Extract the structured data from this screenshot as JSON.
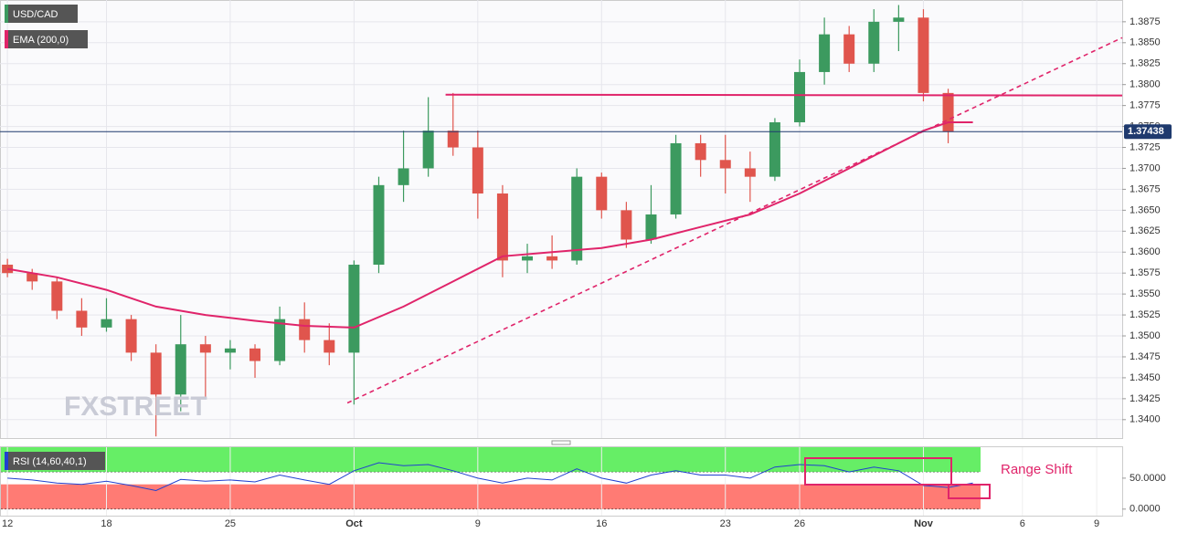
{
  "chart_data": {
    "type": "candlestick",
    "title": "USD/CAD",
    "watermark": "FXSTREET",
    "open": [
      1.3585,
      1.3575,
      1.3565,
      1.353,
      1.351,
      1.352,
      1.348,
      1.343,
      1.349,
      1.348,
      1.3485,
      1.347,
      1.352,
      1.3495,
      1.348,
      1.3585,
      1.368,
      1.37,
      1.3745,
      1.3725,
      1.367,
      1.359,
      1.3595,
      1.359,
      1.369,
      1.365,
      1.3615,
      1.3645,
      1.373,
      1.371,
      1.37,
      1.369,
      1.3755,
      1.3815,
      1.386,
      1.3825,
      1.3875,
      1.388,
      1.379
    ],
    "high": [
      1.3592,
      1.358,
      1.357,
      1.3545,
      1.3545,
      1.3525,
      1.349,
      1.3525,
      1.35,
      1.3495,
      1.349,
      1.3535,
      1.354,
      1.3515,
      1.359,
      1.369,
      1.3745,
      1.3785,
      1.379,
      1.3745,
      1.368,
      1.361,
      1.362,
      1.37,
      1.3695,
      1.366,
      1.368,
      1.374,
      1.374,
      1.374,
      1.372,
      1.376,
      1.383,
      1.388,
      1.387,
      1.389,
      1.3895,
      1.389,
      1.3795
    ],
    "low": [
      1.357,
      1.3555,
      1.352,
      1.35,
      1.3505,
      1.347,
      1.338,
      1.341,
      1.3425,
      1.346,
      1.345,
      1.3465,
      1.348,
      1.3465,
      1.3418,
      1.3575,
      1.366,
      1.369,
      1.3715,
      1.364,
      1.357,
      1.3575,
      1.358,
      1.3585,
      1.364,
      1.3605,
      1.361,
      1.364,
      1.369,
      1.367,
      1.366,
      1.3685,
      1.375,
      1.38,
      1.3815,
      1.3815,
      1.384,
      1.378,
      1.373
    ],
    "close": [
      1.3575,
      1.3565,
      1.353,
      1.351,
      1.352,
      1.348,
      1.343,
      1.349,
      1.348,
      1.3485,
      1.347,
      1.352,
      1.3495,
      1.348,
      1.3585,
      1.368,
      1.37,
      1.3745,
      1.3725,
      1.367,
      1.359,
      1.3595,
      1.359,
      1.369,
      1.365,
      1.3615,
      1.3645,
      1.373,
      1.371,
      1.37,
      1.369,
      1.3755,
      1.3815,
      1.386,
      1.3825,
      1.3875,
      1.388,
      1.379,
      1.37438
    ],
    "up_color": "#3c9a5f",
    "down_color": "#e0554d",
    "ema": {
      "name": "EMA (200,0)",
      "color": "#e0246a",
      "x": [
        0,
        2,
        4,
        6,
        8,
        10,
        12,
        14,
        16,
        18,
        20,
        22,
        24,
        26,
        28,
        30,
        32,
        34,
        36,
        37,
        38,
        39
      ],
      "values": [
        1.358,
        1.357,
        1.3555,
        1.3535,
        1.3525,
        1.3518,
        1.3512,
        1.351,
        1.3535,
        1.3565,
        1.3595,
        1.36,
        1.3605,
        1.3615,
        1.363,
        1.3645,
        1.367,
        1.37,
        1.373,
        1.3745,
        1.3755,
        1.3755
      ]
    },
    "resistance": {
      "x": [
        17.7,
        45.03
      ],
      "values": [
        1.3788,
        1.3787
      ],
      "color": "#e0246a"
    },
    "trendline": {
      "x": [
        13.73,
        45.03
      ],
      "values": [
        1.342,
        1.3856
      ],
      "color": "#e0246a"
    },
    "last_price": {
      "value": 1.37438,
      "label": "1.37438"
    },
    "xlim": [
      -0.3,
      45.03
    ],
    "xticks": [
      {
        "value": 0,
        "label": "12"
      },
      {
        "value": 4,
        "label": "18"
      },
      {
        "value": 9,
        "label": "25"
      },
      {
        "value": 14,
        "label": "Oct"
      },
      {
        "value": 19,
        "label": "9"
      },
      {
        "value": 24,
        "label": "16"
      },
      {
        "value": 29,
        "label": "23"
      },
      {
        "value": 32,
        "label": "26"
      },
      {
        "value": 37,
        "label": "Nov"
      },
      {
        "value": 41,
        "label": "6"
      },
      {
        "value": 44,
        "label": "9"
      }
    ],
    "ylim": [
      1.3378,
      1.3901
    ],
    "yticks": [
      {
        "value": 1.34,
        "label": "1.3400"
      },
      {
        "value": 1.3425,
        "label": "1.3425"
      },
      {
        "value": 1.345,
        "label": "1.3450"
      },
      {
        "value": 1.3475,
        "label": "1.3475"
      },
      {
        "value": 1.35,
        "label": "1.3500"
      },
      {
        "value": 1.3525,
        "label": "1.3525"
      },
      {
        "value": 1.355,
        "label": "1.3550"
      },
      {
        "value": 1.3575,
        "label": "1.3575"
      },
      {
        "value": 1.36,
        "label": "1.3600"
      },
      {
        "value": 1.3625,
        "label": "1.3625"
      },
      {
        "value": 1.365,
        "label": "1.3650"
      },
      {
        "value": 1.3675,
        "label": "1.3675"
      },
      {
        "value": 1.37,
        "label": "1.3700"
      },
      {
        "value": 1.3725,
        "label": "1.3725"
      },
      {
        "value": 1.375,
        "label": "1.3750"
      },
      {
        "value": 1.3775,
        "label": "1.3775"
      },
      {
        "value": 1.38,
        "label": "1.3800"
      },
      {
        "value": 1.3825,
        "label": "1.3825"
      },
      {
        "value": 1.385,
        "label": "1.3850"
      },
      {
        "value": 1.3875,
        "label": "1.3875"
      }
    ],
    "grid": true,
    "rsi": {
      "name": "RSI (14,60,40,1)",
      "color": "#2040d0",
      "values": [
        50,
        47,
        42,
        40,
        45,
        38,
        30,
        48,
        45,
        47,
        44,
        55,
        47,
        40,
        62,
        75,
        70,
        72,
        62,
        50,
        42,
        50,
        47,
        65,
        50,
        42,
        55,
        62,
        55,
        55,
        50,
        68,
        72,
        70,
        60,
        68,
        62,
        38,
        35,
        42
      ],
      "ylim": [
        -10.6,
        100
      ],
      "yticks": [
        {
          "value": 50,
          "label": "50.0000"
        },
        {
          "value": 0,
          "label": "0.0000"
        }
      ],
      "bands": [
        {
          "from": 60,
          "to": 100,
          "color": "#66ee66"
        },
        {
          "from": 0,
          "to": 40,
          "color": "#ff7b74"
        }
      ],
      "annotation": "Range Shift"
    }
  }
}
